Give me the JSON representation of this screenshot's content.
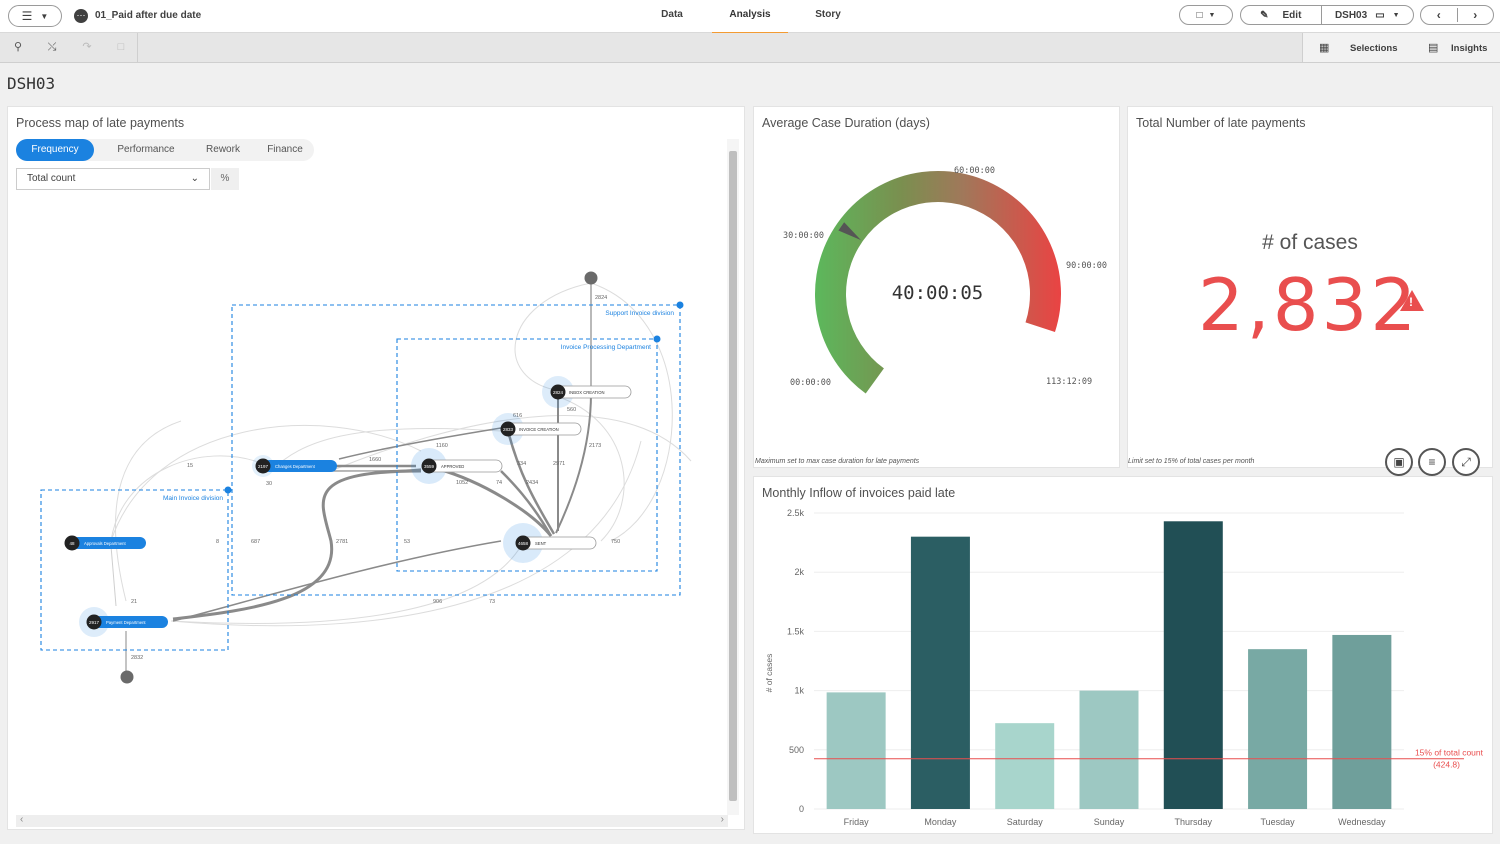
{
  "app": {
    "title": "01_Paid after due date"
  },
  "tabs": [
    {
      "label": "Data"
    },
    {
      "label": "Analysis"
    },
    {
      "label": "Story"
    }
  ],
  "header": {
    "edit_label": "Edit",
    "sheet_label": "DSH03"
  },
  "toolbar": {
    "selections_label": "Selections",
    "insights_label": "Insights"
  },
  "sheet": {
    "title": "DSH03"
  },
  "process_map": {
    "title": "Process map of late payments",
    "tabs": [
      "Frequency",
      "Performance",
      "Rework",
      "Finance"
    ],
    "active_tab": "Frequency",
    "dropdown_value": "Total count",
    "pct_label": "%",
    "groups": [
      "Support Invoice division",
      "Invoice Processing Department",
      "Main Invoice division"
    ],
    "nodes": [
      {
        "count": "2824",
        "label": "INBOX CREATION"
      },
      {
        "count": "2833",
        "label": "INVOICE CREATION"
      },
      {
        "count": "2197",
        "label": "Changes Department"
      },
      {
        "count": "3559",
        "label": "APPROVED"
      },
      {
        "count": "4658",
        "label": "SENT"
      },
      {
        "count": "48",
        "label": "Approvals Department"
      },
      {
        "count": "2917",
        "label": "Payment Department"
      }
    ],
    "edge_labels": [
      "2824",
      "560",
      "2173",
      "1160",
      "1660",
      "2971",
      "334",
      "1052",
      "2434",
      "74",
      "2781",
      "687",
      "750",
      "2832",
      "21",
      "53",
      "616",
      "30",
      "8",
      "15",
      "906",
      "73"
    ]
  },
  "gauge": {
    "title": "Average Case Duration (days)",
    "value_label": "40:00:05",
    "tick_labels": [
      "00:00:00",
      "30:00:00",
      "60:00:00",
      "90:00:00",
      "113:12:09"
    ],
    "value_fraction": 0.353,
    "note": "Maximum set to max case duration for late payments"
  },
  "kpi": {
    "title": "Total Number of late payments",
    "label": "# of cases",
    "value": "2,832",
    "warn_symbol": "!",
    "note": "Limit set to 15% of total cases per month",
    "color": "#e94e4e"
  },
  "chart_data": {
    "type": "bar",
    "title": "Monthly Inflow of invoices paid late",
    "ylabel": "# of cases",
    "categories": [
      "Friday",
      "Monday",
      "Saturday",
      "Sunday",
      "Thursday",
      "Tuesday",
      "Wednesday"
    ],
    "values": [
      985,
      2300,
      725,
      1000,
      2430,
      1350,
      1470
    ],
    "colors": [
      "#9dc8c2",
      "#2b5e63",
      "#a8d5cc",
      "#9dc8c2",
      "#214f55",
      "#78a9a4",
      "#6f9f9b"
    ],
    "ylim": [
      0,
      2500
    ],
    "yticks": [
      {
        "v": 0,
        "label": "0"
      },
      {
        "v": 500,
        "label": "500"
      },
      {
        "v": 1000,
        "label": "1k"
      },
      {
        "v": 1500,
        "label": "1.5k"
      },
      {
        "v": 2000,
        "label": "2k"
      },
      {
        "v": 2500,
        "label": "2.5k"
      }
    ],
    "reference_line": {
      "value": 424.8,
      "label": "15% of total count",
      "value_label": "(424.8)",
      "color": "#e94e4e"
    }
  }
}
